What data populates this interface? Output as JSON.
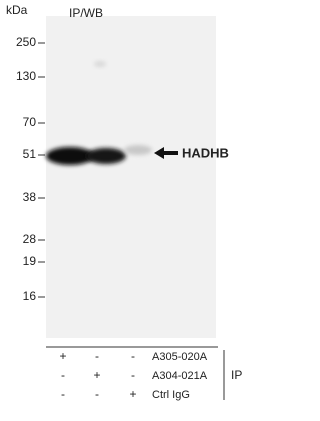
{
  "header": {
    "title": "IP/WB"
  },
  "markers": {
    "unit": "kDa",
    "labels": [
      "250",
      "130",
      "70",
      "51",
      "38",
      "28",
      "19",
      "16"
    ]
  },
  "band_label": "HADHB",
  "table": {
    "rows": [
      [
        "+",
        "-",
        "-",
        "A305-020A"
      ],
      [
        "-",
        "+",
        "-",
        "A304-021A"
      ],
      [
        "-",
        "-",
        "+",
        "Ctrl IgG"
      ]
    ],
    "group_label": "IP"
  }
}
